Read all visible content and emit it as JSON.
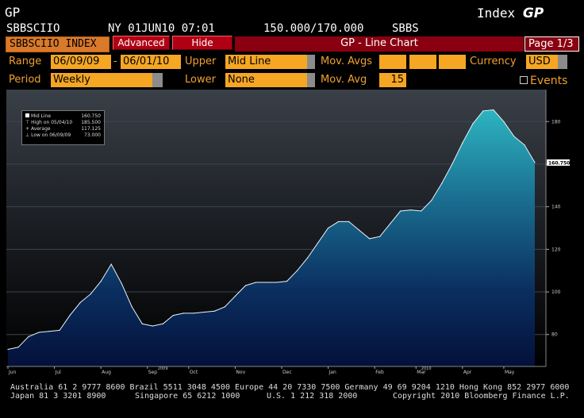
{
  "header": {
    "function_code": "GP",
    "ticker": "SBBSCIIO",
    "exchange_date_time": "NY 01JUN10 07:01",
    "bid_ask": "150.000/170.000",
    "source": "SBBS",
    "index_label": "Index",
    "index_function": "GP"
  },
  "menubar": {
    "ticker_field": "SBBSCIIO INDEX",
    "advanced_label": "Advanced",
    "hide_label": "Hide",
    "chart_title": "GP - Line Chart",
    "page": "Page 1/3"
  },
  "params": {
    "range_label": "Range",
    "range_start": "06/09/09",
    "range_sep": "-",
    "range_end": "06/01/10",
    "upper_label": "Upper",
    "upper_value": "Mid Line",
    "mov_avgs_label": "Mov. Avgs",
    "currency_label": "Currency",
    "currency_value": "USD",
    "period_label": "Period",
    "period_value": "Weekly",
    "lower_label": "Lower",
    "lower_value": "None",
    "mov_avg_label": "Mov. Avg",
    "mov_avg_value": "15",
    "events_label": "Events"
  },
  "legend": {
    "mid_line_label": "Mid Line",
    "mid_line_value": "160.750",
    "high_label": "High on 05/04/10",
    "high_value": "185.500",
    "average_label": "Average",
    "average_value": "117.125",
    "low_label": "Low on 06/09/09",
    "low_value": "73.000"
  },
  "chart_data": {
    "type": "area",
    "series": [
      {
        "name": "Mid Line",
        "values": [
          73,
          74,
          79,
          81,
          81.5,
          82,
          89,
          95,
          99,
          105,
          113,
          104,
          93,
          85,
          84,
          85,
          89,
          90,
          90,
          90.5,
          91,
          93,
          98,
          103,
          104.5,
          104.5,
          104.5,
          105,
          110,
          116,
          123,
          130,
          133,
          133,
          129,
          125,
          126,
          132,
          138,
          138.5,
          138,
          143,
          151,
          160,
          170,
          179,
          185,
          185.5,
          180,
          173,
          169,
          160.75
        ]
      }
    ],
    "x_tick_labels": [
      "Jun",
      "Jul",
      "Aug",
      "Sep",
      "Oct",
      "Nov",
      "Dec",
      "Jan",
      "Feb",
      "Mar",
      "Apr",
      "May"
    ],
    "x_tick_indices": [
      0,
      4.5,
      9,
      13.5,
      17.5,
      22,
      26.5,
      31,
      35.5,
      39.5,
      44,
      48
    ],
    "year_labels": [
      "2009",
      "2010"
    ],
    "year_label_indices": [
      14.5,
      40
    ],
    "y_ticks": [
      80,
      100,
      120,
      140,
      160,
      180
    ],
    "ylim": [
      65,
      195
    ],
    "last_value_label": "160.750",
    "grid": true
  },
  "footer": {
    "line1": "Australia 61 2 9777 8600 Brazil 5511 3048 4500 Europe 44 20 7330 7500 Germany 49 69 9204 1210 Hong Kong 852 2977 6000",
    "line2_left": "Japan 81 3 3201 8900",
    "line2_mid": "Singapore 65 6212 1000",
    "line2_us": "U.S. 1 212 318 2000",
    "line2_right": "Copyright 2010 Bloomberg Finance L.P."
  },
  "colors": {
    "accent_orange": "#f5a623",
    "label_orange": "#f0a030",
    "bar_red": "#8a0010",
    "area_top": "#2aa6b4",
    "area_bottom": "#04103a"
  }
}
